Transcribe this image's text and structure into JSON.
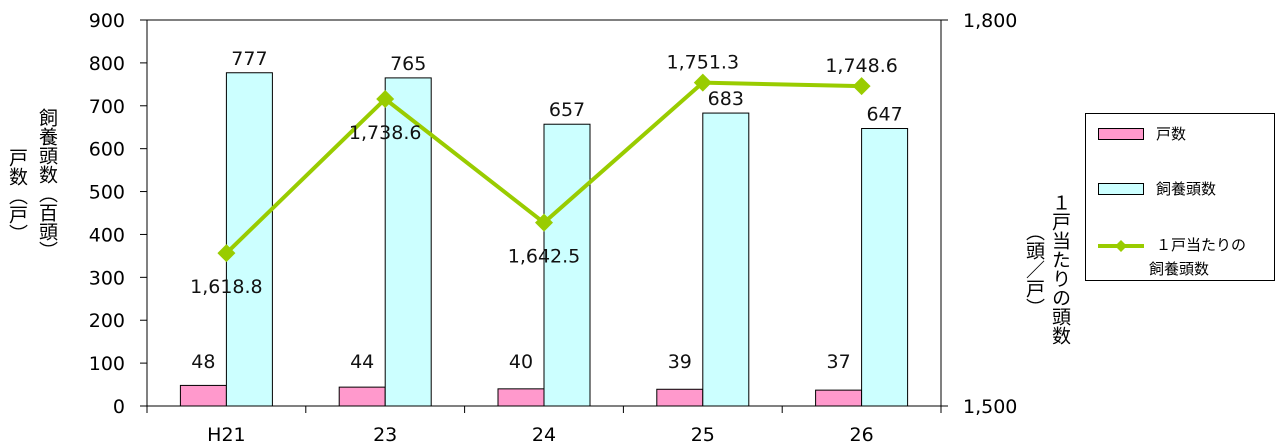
{
  "chart_data": {
    "type": "bar",
    "categories": [
      "H21",
      "23",
      "24",
      "25",
      "26"
    ],
    "series": [
      {
        "name": "戸数",
        "type": "bar",
        "axis": "left",
        "values": [
          48,
          44,
          40,
          39,
          37
        ],
        "color": "#ff99cc"
      },
      {
        "name": "飼養頭数",
        "type": "bar",
        "axis": "left",
        "values": [
          777,
          765,
          657,
          683,
          647
        ],
        "color": "#ccffff"
      },
      {
        "name": "１戸当たりの飼養頭数",
        "type": "line",
        "axis": "right",
        "values": [
          1618.8,
          1738.6,
          1642.5,
          1751.3,
          1748.6
        ],
        "color": "#99cc00"
      }
    ],
    "series_data_labels": {
      "households": [
        "48",
        "44",
        "40",
        "39",
        "37"
      ],
      "head": [
        "777",
        "765",
        "657",
        "683",
        "647"
      ],
      "per_household": [
        "1,618.8",
        "1,738.6",
        "1,642.5",
        "1,751.3",
        "1,748.6"
      ]
    },
    "ylim_left": [
      0,
      900
    ],
    "ylim_right": [
      1500,
      1800
    ],
    "left_ticks": [
      "0",
      "100",
      "200",
      "300",
      "400",
      "500",
      "600",
      "700",
      "800",
      "900"
    ],
    "right_ticks": [
      "1,500",
      "1,800"
    ],
    "ylabel_left_1": "戸数（戸）",
    "ylabel_left_2": "飼養頭数（百頭）",
    "ylabel_right_1": "１戸当たりの頭数",
    "ylabel_right_2": "（頭／戸）",
    "legend_position": "right",
    "grid": false
  },
  "legend": {
    "items": [
      {
        "label": "戸数",
        "color": "#ff99cc",
        "kind": "bar"
      },
      {
        "label": "飼養頭数",
        "color": "#ccffff",
        "kind": "bar"
      },
      {
        "label": "１戸当たりの",
        "label2": "飼養頭数",
        "color": "#99cc00",
        "kind": "line"
      }
    ]
  }
}
